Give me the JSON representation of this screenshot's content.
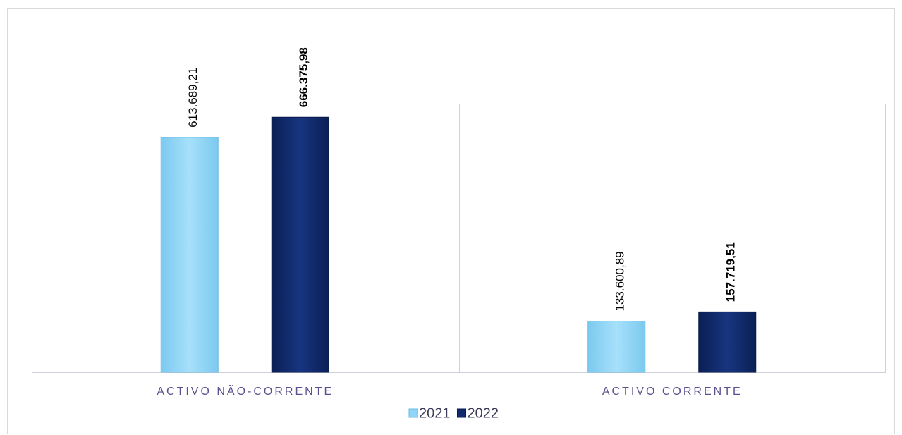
{
  "chart_data": {
    "type": "bar",
    "categories": [
      "ACTIVO NÃO-CORRENTE",
      "ACTIVO CORRENTE"
    ],
    "series": [
      {
        "name": "2021",
        "color": "#8fd6f6",
        "values": [
          613689.21,
          133600.89
        ],
        "value_labels": [
          "613.689,21",
          "133.600,89"
        ]
      },
      {
        "name": "2022",
        "color": "#102a6e",
        "values": [
          666375.98,
          157719.51
        ],
        "value_labels": [
          "666.375,98",
          "157.719,51"
        ]
      }
    ],
    "ylim": [
      0,
      700000
    ]
  }
}
